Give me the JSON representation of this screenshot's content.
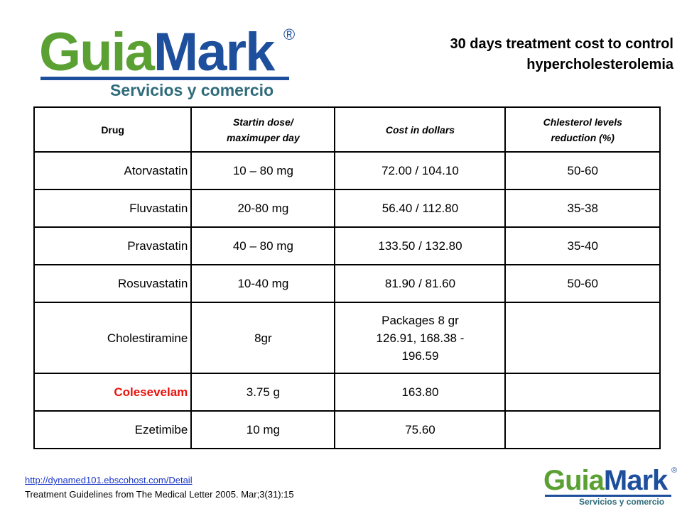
{
  "logo": {
    "name": [
      "Guia",
      "Mark"
    ],
    "mark": "®",
    "tagline": "Servicios y comercio"
  },
  "header": {
    "title": [
      "30 days treatment cost to control",
      "hypercholesterolemia"
    ]
  },
  "table": {
    "columns": [
      "Drug",
      "Startin dose/\nmaximuper day",
      "Cost in dollars",
      "Chlesterol levels\nreduction (%)"
    ],
    "rows": [
      [
        "Atorvastatin",
        "10 – 80 mg",
        "72.00 / 104.10",
        "50-60"
      ],
      [
        "Fluvastatin",
        "20-80 mg",
        "56.40 / 112.80",
        "35-38"
      ],
      [
        "Pravastatin",
        "40 – 80 mg",
        "133.50 / 132.80",
        "35-40"
      ],
      [
        "Rosuvastatin",
        "10-40 mg",
        "81.90 / 81.60",
        "50-60"
      ],
      [
        "Cholestiramine",
        "8gr",
        "Packages 8 gr\n126.91, 168.38 -\n196.59"
      ],
      [
        "Colesevelam",
        "3.75 g",
        "163.80"
      ],
      [
        "Ezetimibe",
        "10 mg",
        "75.60"
      ]
    ]
  },
  "footer": {
    "link": "http://dynamed101.ebscohost.com/Detail",
    "citation": "Treatment Guidelines from The Medical Letter 2005. Mar;3(31):15"
  }
}
